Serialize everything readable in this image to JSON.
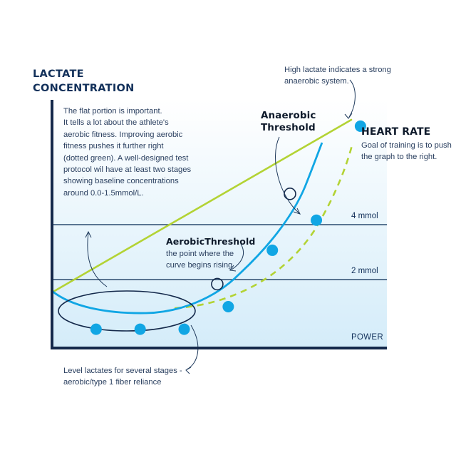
{
  "axes": {
    "y_title_lines": [
      "LACTATE",
      "CONCENTRATION"
    ],
    "x_title": "POWER"
  },
  "levels": [
    {
      "label": "4 mmol",
      "lactate_mmol": 4
    },
    {
      "label": "2 mmol",
      "lactate_mmol": 2
    }
  ],
  "annotations": {
    "flat_portion_lines": [
      "The flat portion is important.",
      "It tells a lot about the athlete's",
      "aerobic fitness. Improving aerobic",
      "fitness pushes it further right",
      "(dotted green). A well-designed test",
      "protocol wil have at least two stages",
      "showing baseline concentrations",
      "around 0.0-1.5mmol/L."
    ],
    "high_lactate_lines": [
      "High lactate indicates a strong",
      "anaerobic system."
    ],
    "anaerobic_threshold_lines": [
      "Anaerobic",
      "Threshold"
    ],
    "heart_rate_title": "HEART RATE",
    "heart_rate_lines": [
      "Goal of training is to push",
      "the graph to the right."
    ],
    "aerobic_threshold_title": "AerobicThreshold",
    "aerobic_threshold_lines": [
      "the point where the",
      "curve begins rising"
    ],
    "level_lactates_lines": [
      "Level lactates for several stages -",
      "aerobic/type 1 fiber reliance"
    ]
  },
  "colors": {
    "background_top": "#ffffff",
    "background_bottom": "#d4ecf9",
    "axis": "#14294b",
    "level_line": "#2a4a6e",
    "lactate_curve": "#11a6e4",
    "heart_rate_line": "#b3d334",
    "improved_curve": "#b3d334",
    "text": "#1f3a5c"
  },
  "chart_data": {
    "type": "line",
    "description_series": [
      {
        "name": "",
        "role": "lactate-curve-points",
        "x": [
          1,
          2,
          3,
          4,
          5,
          6,
          7
        ],
        "y": [
          0.5,
          0.5,
          0.5,
          1.1,
          2.6,
          3.4,
          5.9
        ]
      },
      {
        "name": "",
        "role": "threshold-markers",
        "x": [
          3.75,
          5.4
        ],
        "y": [
          1.7,
          4.1
        ]
      }
    ],
    "heart_rate_trend": "linear-increasing",
    "ylim": [
      0,
      6.6
    ],
    "xlim": [
      0,
      7.6
    ],
    "grid": false
  }
}
